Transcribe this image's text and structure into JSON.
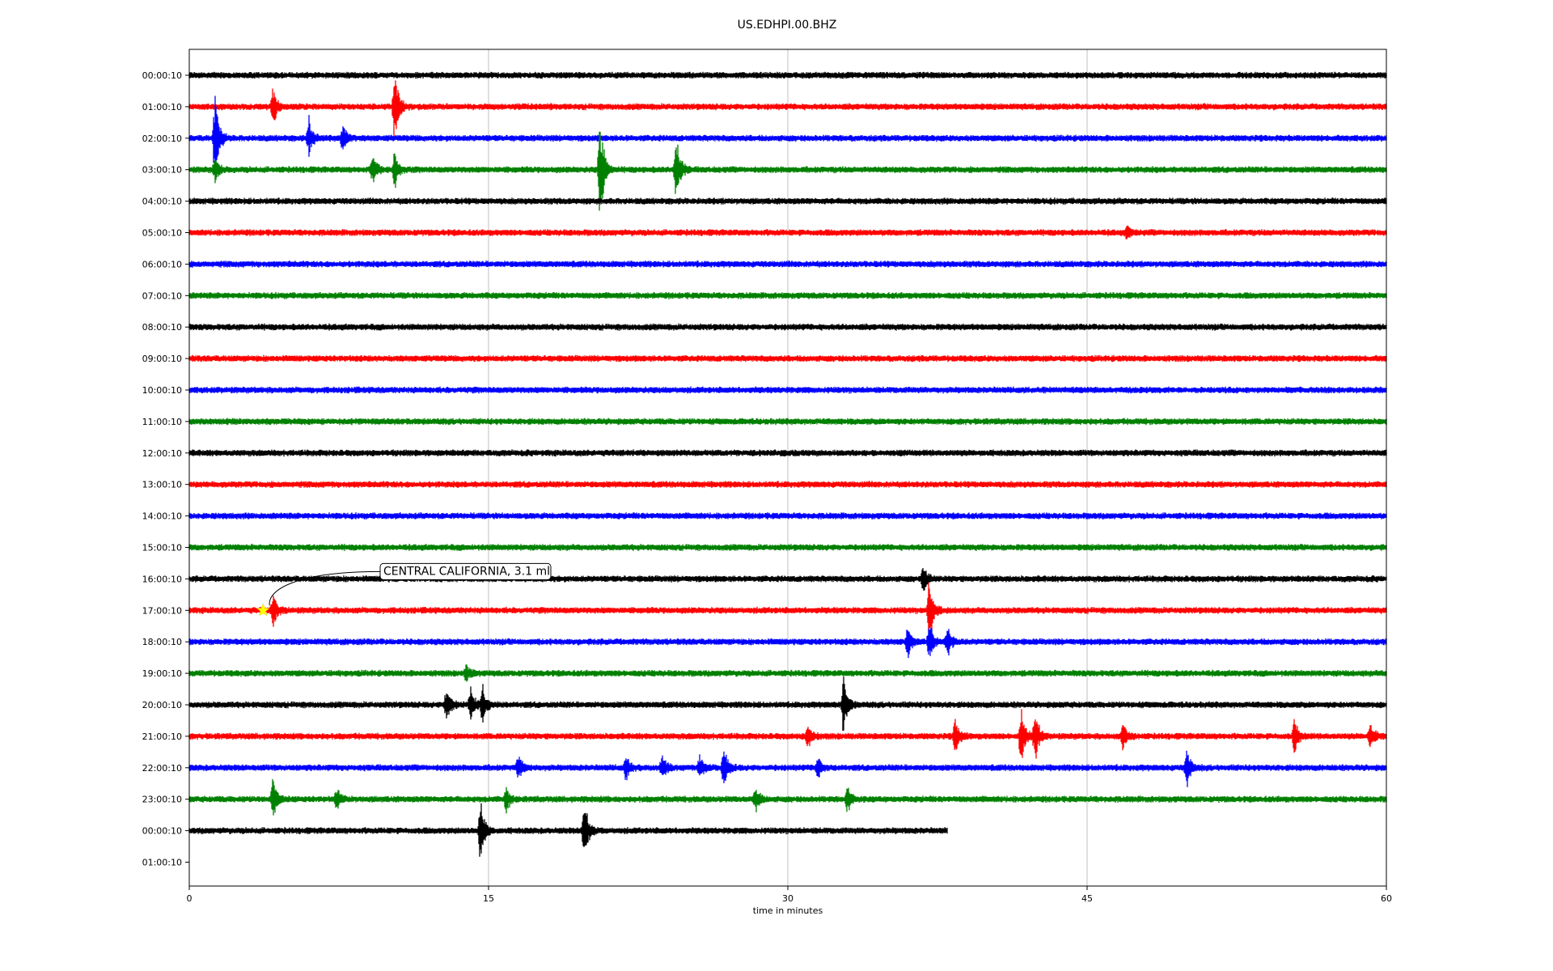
{
  "chart_data": {
    "type": "line",
    "title": "US.EDHPI.00.BHZ",
    "xlabel": "time in minutes",
    "xlim": [
      0,
      60
    ],
    "x_ticks": [
      "0",
      "15",
      "30",
      "45",
      "60"
    ],
    "grid": "vertical",
    "row_labels": [
      "00:00:10",
      "01:00:10",
      "02:00:10",
      "03:00:10",
      "04:00:10",
      "05:00:10",
      "06:00:10",
      "07:00:10",
      "08:00:10",
      "09:00:10",
      "10:00:10",
      "11:00:10",
      "12:00:10",
      "13:00:10",
      "14:00:10",
      "15:00:10",
      "16:00:10",
      "17:00:10",
      "18:00:10",
      "19:00:10",
      "20:00:10",
      "21:00:10",
      "22:00:10",
      "23:00:10",
      "00:00:10",
      "01:00:10"
    ],
    "trace_colors": [
      "#000000",
      "#ff0000",
      "#0000ff",
      "#008000"
    ],
    "last_trace_end_minute": 38,
    "events": [
      {
        "row": 1,
        "minute": 4.2,
        "amp": 0.6
      },
      {
        "row": 1,
        "minute": 10.3,
        "amp": 1.2
      },
      {
        "row": 2,
        "minute": 1.3,
        "amp": 1.4
      },
      {
        "row": 2,
        "minute": 6.0,
        "amp": 0.6
      },
      {
        "row": 2,
        "minute": 7.7,
        "amp": 0.5
      },
      {
        "row": 3,
        "minute": 1.3,
        "amp": 0.4
      },
      {
        "row": 3,
        "minute": 9.2,
        "amp": 0.5
      },
      {
        "row": 3,
        "minute": 10.3,
        "amp": 0.6
      },
      {
        "row": 3,
        "minute": 20.6,
        "amp": 1.9
      },
      {
        "row": 3,
        "minute": 24.4,
        "amp": 1.2
      },
      {
        "row": 5,
        "minute": 47.0,
        "amp": 0.2
      },
      {
        "row": 16,
        "minute": 36.8,
        "amp": 0.5
      },
      {
        "row": 17,
        "minute": 4.2,
        "amp": 0.6
      },
      {
        "row": 17,
        "minute": 37.1,
        "amp": 1.1
      },
      {
        "row": 18,
        "minute": 36.0,
        "amp": 0.5
      },
      {
        "row": 18,
        "minute": 37.1,
        "amp": 0.6
      },
      {
        "row": 18,
        "minute": 38.0,
        "amp": 0.5
      },
      {
        "row": 19,
        "minute": 13.9,
        "amp": 0.3
      },
      {
        "row": 20,
        "minute": 12.9,
        "amp": 0.7
      },
      {
        "row": 20,
        "minute": 14.1,
        "amp": 0.5
      },
      {
        "row": 20,
        "minute": 14.7,
        "amp": 0.6
      },
      {
        "row": 20,
        "minute": 32.8,
        "amp": 0.9
      },
      {
        "row": 21,
        "minute": 31.0,
        "amp": 0.4
      },
      {
        "row": 21,
        "minute": 38.4,
        "amp": 0.6
      },
      {
        "row": 21,
        "minute": 41.7,
        "amp": 0.9
      },
      {
        "row": 21,
        "minute": 42.4,
        "amp": 0.8
      },
      {
        "row": 21,
        "minute": 46.8,
        "amp": 0.5
      },
      {
        "row": 21,
        "minute": 55.4,
        "amp": 0.5
      },
      {
        "row": 21,
        "minute": 59.2,
        "amp": 0.4
      },
      {
        "row": 22,
        "minute": 16.5,
        "amp": 0.4
      },
      {
        "row": 22,
        "minute": 21.9,
        "amp": 0.4
      },
      {
        "row": 22,
        "minute": 23.7,
        "amp": 0.4
      },
      {
        "row": 22,
        "minute": 25.6,
        "amp": 0.4
      },
      {
        "row": 22,
        "minute": 26.8,
        "amp": 0.6
      },
      {
        "row": 22,
        "minute": 31.5,
        "amp": 0.4
      },
      {
        "row": 22,
        "minute": 50.0,
        "amp": 0.6
      },
      {
        "row": 23,
        "minute": 4.2,
        "amp": 0.6
      },
      {
        "row": 23,
        "minute": 7.4,
        "amp": 0.3
      },
      {
        "row": 23,
        "minute": 15.9,
        "amp": 0.4
      },
      {
        "row": 23,
        "minute": 28.4,
        "amp": 0.4
      },
      {
        "row": 23,
        "minute": 33.0,
        "amp": 0.4
      },
      {
        "row": 24,
        "minute": 14.6,
        "amp": 1.0
      },
      {
        "row": 24,
        "minute": 19.8,
        "amp": 1.0
      }
    ],
    "annotation": {
      "text": "CENTRAL CALIFORNIA, 3.1 ml",
      "row": 17,
      "minute": 3.7,
      "marker": "star",
      "marker_color": "#ffff00"
    }
  }
}
